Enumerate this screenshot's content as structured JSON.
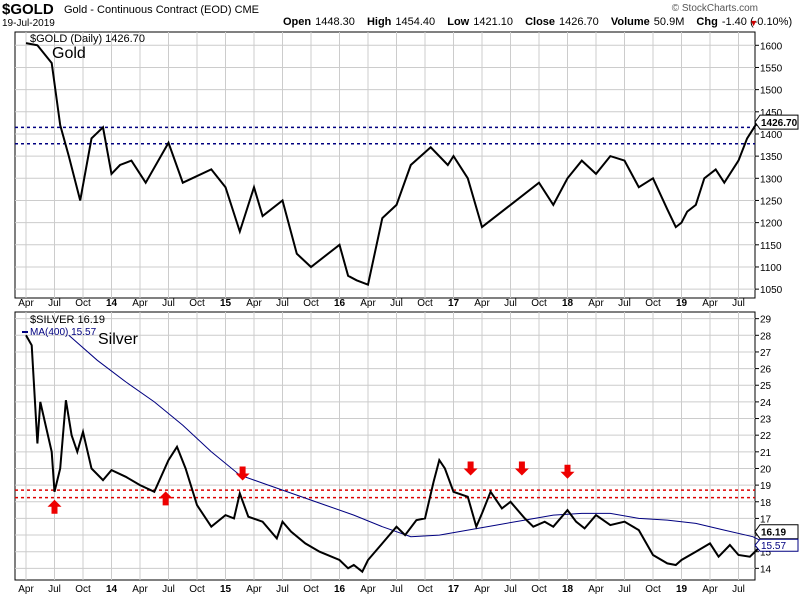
{
  "header": {
    "symbol": "$GOLD",
    "description": "Gold - Continuous Contract (EOD)",
    "exchange": "CME",
    "date": "19-Jul-2019",
    "brand": "© StockCharts.com",
    "open_label": "Open",
    "open": "1448.30",
    "high_label": "High",
    "high": "1454.40",
    "low_label": "Low",
    "low": "1421.10",
    "close_label": "Close",
    "close": "1426.70",
    "volume_label": "Volume",
    "volume": "50.9M",
    "chg_label": "Chg",
    "chg": "-1.40 (-0.10%)"
  },
  "colors": {
    "price": "#000000",
    "ma": "#000080",
    "gold_level": "#000080",
    "silver_level": "#dd0000",
    "arrow": "#ee0000",
    "grid": "#cccccc"
  },
  "chart_data": [
    {
      "type": "line",
      "title": "$GOLD (Daily) 1426.70",
      "panel_label": "Gold",
      "last_value": "1426.70",
      "ylim": [
        1030,
        1630
      ],
      "y_ticks": [
        1050,
        1100,
        1150,
        1200,
        1250,
        1300,
        1350,
        1400,
        1450,
        1500,
        1550,
        1600
      ],
      "x_ticks": [
        "Apr",
        "Jul",
        "Oct",
        "14",
        "Apr",
        "Jul",
        "Oct",
        "15",
        "Apr",
        "Jul",
        "Oct",
        "16",
        "Apr",
        "Jul",
        "Oct",
        "17",
        "Apr",
        "Jul",
        "Oct",
        "18",
        "Apr",
        "Jul",
        "Oct",
        "19",
        "Apr",
        "Jul"
      ],
      "horizontal_lines": [
        1415,
        1378
      ],
      "series": [
        {
          "name": "$GOLD",
          "x": [
            0,
            0.4,
            0.9,
            1.2,
            1.5,
            1.9,
            2.3,
            2.7,
            3.0,
            3.3,
            3.7,
            4.2,
            5,
            5.5,
            6.5,
            7,
            7.5,
            8,
            8.3,
            9,
            9.5,
            10,
            11,
            11.3,
            11.6,
            12,
            12.5,
            13,
            13.5,
            14.2,
            14.8,
            15,
            15.5,
            16,
            17,
            18,
            18.5,
            19,
            19.5,
            20,
            20.5,
            21,
            21.5,
            22,
            22.5,
            22.8,
            23,
            23.2,
            23.5,
            23.8,
            24.2,
            24.5,
            25,
            25.3,
            25.6,
            25.9
          ],
          "values": [
            1605,
            1600,
            1560,
            1420,
            1350,
            1250,
            1390,
            1415,
            1310,
            1330,
            1340,
            1290,
            1380,
            1290,
            1320,
            1280,
            1180,
            1280,
            1215,
            1250,
            1130,
            1100,
            1150,
            1080,
            1070,
            1060,
            1210,
            1240,
            1330,
            1370,
            1330,
            1350,
            1300,
            1190,
            1240,
            1290,
            1240,
            1300,
            1340,
            1310,
            1350,
            1340,
            1280,
            1300,
            1230,
            1190,
            1200,
            1225,
            1240,
            1300,
            1320,
            1290,
            1340,
            1390,
            1420,
            1426.7
          ]
        }
      ]
    },
    {
      "type": "line",
      "title": "$SILVER 16.19",
      "ma_label": "MA(400) 15.57",
      "panel_label": "Silver",
      "last_value": "16.19",
      "ma_last_value": "15.57",
      "ylim": [
        13.3,
        29.4
      ],
      "y_ticks": [
        14,
        15,
        16,
        17,
        18,
        19,
        20,
        21,
        22,
        23,
        24,
        25,
        26,
        27,
        28,
        29
      ],
      "x_ticks": [
        "Apr",
        "Jul",
        "Oct",
        "14",
        "Apr",
        "Jul",
        "Oct",
        "15",
        "Apr",
        "Jul",
        "Oct",
        "16",
        "Apr",
        "Jul",
        "Oct",
        "17",
        "Apr",
        "Jul",
        "Oct",
        "18",
        "Apr",
        "Jul",
        "Oct",
        "19",
        "Apr",
        "Jul"
      ],
      "horizontal_lines": [
        18.7,
        18.25
      ],
      "arrows": [
        {
          "x": 1.0,
          "value": 17.7,
          "direction": "up"
        },
        {
          "x": 4.9,
          "value": 18.2,
          "direction": "up"
        },
        {
          "x": 7.6,
          "value": 19.7,
          "direction": "down"
        },
        {
          "x": 15.6,
          "value": 20.0,
          "direction": "down"
        },
        {
          "x": 17.4,
          "value": 20.0,
          "direction": "down"
        },
        {
          "x": 19.0,
          "value": 19.8,
          "direction": "down"
        }
      ],
      "series": [
        {
          "name": "$SILVER",
          "x": [
            0,
            0.2,
            0.4,
            0.5,
            0.7,
            0.9,
            1.0,
            1.2,
            1.4,
            1.6,
            1.8,
            2.0,
            2.3,
            2.7,
            3.0,
            3.5,
            4.0,
            4.5,
            5.0,
            5.3,
            5.6,
            6.0,
            6.5,
            7.0,
            7.3,
            7.5,
            7.8,
            8.3,
            8.8,
            9.0,
            9.3,
            9.8,
            10.3,
            11.0,
            11.3,
            11.5,
            11.8,
            12.0,
            12.5,
            13.0,
            13.3,
            13.7,
            14.0,
            14.3,
            14.5,
            14.7,
            15.0,
            15.5,
            15.8,
            16.0,
            16.3,
            16.7,
            17.0,
            17.5,
            17.8,
            18.2,
            18.5,
            19.0,
            19.3,
            19.6,
            20.0,
            20.5,
            21.0,
            21.5,
            22.0,
            22.5,
            22.8,
            23.0,
            23.5,
            24.0,
            24.3,
            24.7,
            25.0,
            25.4,
            25.7,
            25.9
          ],
          "values": [
            28.0,
            27.4,
            21.5,
            24.0,
            22.5,
            21.0,
            18.6,
            20.0,
            24.1,
            22.0,
            21.0,
            22.2,
            20.0,
            19.3,
            19.9,
            19.5,
            19.0,
            18.6,
            20.5,
            21.3,
            20.0,
            17.8,
            16.5,
            17.2,
            17.0,
            18.5,
            17.1,
            16.8,
            15.8,
            16.8,
            16.2,
            15.5,
            15.0,
            14.5,
            14.0,
            14.2,
            13.8,
            14.5,
            15.5,
            16.5,
            16.0,
            16.9,
            17.0,
            19.2,
            20.5,
            20.0,
            18.6,
            18.3,
            16.5,
            17.3,
            18.6,
            17.6,
            18.0,
            17.0,
            16.5,
            16.8,
            16.5,
            17.5,
            16.8,
            16.4,
            17.2,
            16.6,
            16.8,
            16.3,
            14.8,
            14.3,
            14.2,
            14.5,
            15.0,
            15.5,
            14.7,
            15.4,
            14.8,
            14.7,
            15.2,
            16.2
          ]
        },
        {
          "name": "MA(400)",
          "x": [
            1.5,
            2.5,
            3.5,
            4.5,
            5.5,
            6.5,
            7.5,
            8.5,
            9.5,
            10.5,
            11.5,
            12.5,
            13.5,
            14.5,
            15.5,
            16.5,
            17.5,
            18.5,
            19.5,
            20.5,
            21.5,
            22.5,
            23.5,
            24.5,
            25.5,
            25.9
          ],
          "values": [
            28.0,
            26.5,
            25.2,
            24.0,
            22.6,
            21.0,
            19.6,
            19.0,
            18.4,
            17.8,
            17.2,
            16.5,
            15.9,
            16.0,
            16.3,
            16.6,
            16.9,
            17.2,
            17.3,
            17.3,
            17.0,
            16.9,
            16.7,
            16.3,
            15.9,
            15.57
          ]
        }
      ]
    }
  ]
}
